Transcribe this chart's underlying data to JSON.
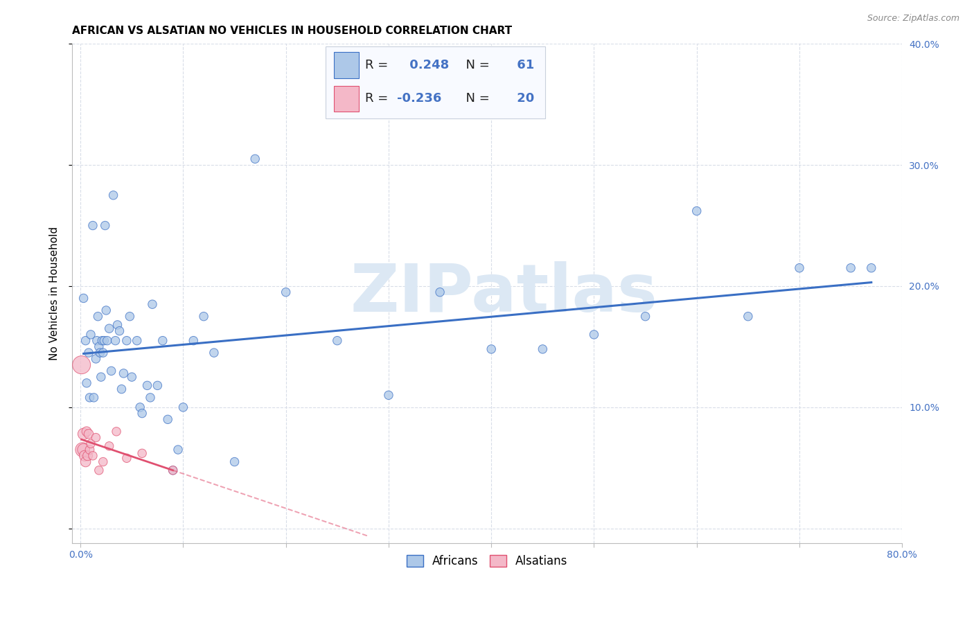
{
  "title": "AFRICAN VS ALSATIAN NO VEHICLES IN HOUSEHOLD CORRELATION CHART",
  "source": "Source: ZipAtlas.com",
  "ylabel": "No Vehicles in Household",
  "xlim": [
    0.0,
    0.8
  ],
  "ylim": [
    0.0,
    0.4
  ],
  "african_R": 0.248,
  "african_N": 61,
  "alsatian_R": -0.236,
  "alsatian_N": 20,
  "african_color": "#adc8e8",
  "alsatian_color": "#f4b8c8",
  "african_line_color": "#3a6fc4",
  "alsatian_line_color": "#e05070",
  "watermark_color": "#dce8f4",
  "grid_color": "#d8dde8",
  "legend_bg": "#f8faff",
  "legend_border": "#c8d0dc",
  "right_tick_color": "#4472c4",
  "title_fontsize": 11,
  "tick_fontsize": 10,
  "source_fontsize": 9,
  "watermark_fontsize": 70,
  "african_x": [
    0.003,
    0.005,
    0.006,
    0.008,
    0.009,
    0.01,
    0.012,
    0.013,
    0.015,
    0.016,
    0.017,
    0.018,
    0.019,
    0.02,
    0.021,
    0.022,
    0.023,
    0.024,
    0.025,
    0.026,
    0.028,
    0.03,
    0.032,
    0.034,
    0.036,
    0.038,
    0.04,
    0.042,
    0.045,
    0.048,
    0.05,
    0.055,
    0.058,
    0.06,
    0.065,
    0.068,
    0.07,
    0.075,
    0.08,
    0.085,
    0.09,
    0.095,
    0.1,
    0.11,
    0.12,
    0.13,
    0.15,
    0.17,
    0.2,
    0.25,
    0.3,
    0.35,
    0.4,
    0.45,
    0.5,
    0.55,
    0.6,
    0.65,
    0.7,
    0.75,
    0.77
  ],
  "african_y": [
    0.19,
    0.155,
    0.12,
    0.145,
    0.108,
    0.16,
    0.25,
    0.108,
    0.14,
    0.155,
    0.175,
    0.15,
    0.145,
    0.125,
    0.155,
    0.145,
    0.155,
    0.25,
    0.18,
    0.155,
    0.165,
    0.13,
    0.275,
    0.155,
    0.168,
    0.163,
    0.115,
    0.128,
    0.155,
    0.175,
    0.125,
    0.155,
    0.1,
    0.095,
    0.118,
    0.108,
    0.185,
    0.118,
    0.155,
    0.09,
    0.048,
    0.065,
    0.1,
    0.155,
    0.175,
    0.145,
    0.055,
    0.305,
    0.195,
    0.155,
    0.11,
    0.195,
    0.148,
    0.148,
    0.16,
    0.175,
    0.262,
    0.175,
    0.215,
    0.215,
    0.215
  ],
  "african_sizes": [
    80,
    80,
    80,
    80,
    80,
    80,
    80,
    80,
    80,
    80,
    80,
    80,
    80,
    80,
    80,
    80,
    80,
    80,
    80,
    80,
    80,
    80,
    80,
    80,
    80,
    80,
    80,
    80,
    80,
    80,
    80,
    80,
    80,
    80,
    80,
    80,
    80,
    80,
    80,
    80,
    80,
    80,
    80,
    80,
    80,
    80,
    80,
    80,
    80,
    80,
    80,
    80,
    80,
    80,
    80,
    80,
    80,
    80,
    80,
    80,
    80
  ],
  "alsatian_x": [
    0.001,
    0.002,
    0.003,
    0.003,
    0.004,
    0.005,
    0.006,
    0.007,
    0.008,
    0.009,
    0.01,
    0.012,
    0.015,
    0.018,
    0.022,
    0.028,
    0.035,
    0.045,
    0.06,
    0.09
  ],
  "alsatian_y": [
    0.135,
    0.065,
    0.065,
    0.078,
    0.06,
    0.055,
    0.08,
    0.06,
    0.078,
    0.065,
    0.07,
    0.06,
    0.075,
    0.048,
    0.055,
    0.068,
    0.08,
    0.058,
    0.062,
    0.048
  ],
  "alsatian_sizes": [
    350,
    220,
    160,
    140,
    120,
    110,
    100,
    100,
    95,
    85,
    80,
    80,
    80,
    80,
    80,
    80,
    80,
    80,
    80,
    80
  ]
}
